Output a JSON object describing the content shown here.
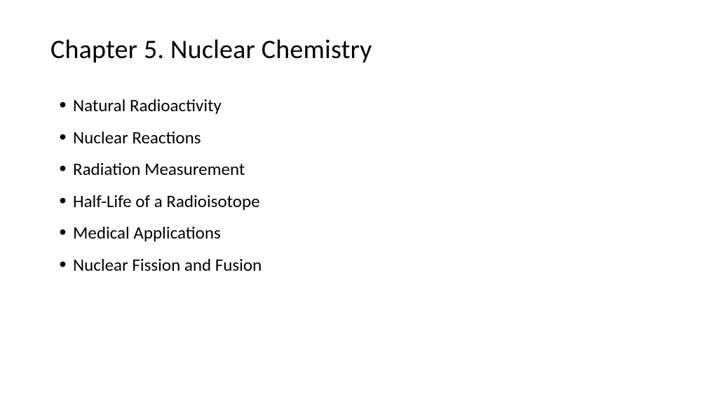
{
  "slide": {
    "title": "Chapter 5. Nuclear Chemistry",
    "bullets": [
      "Natural Radioactivity",
      "Nuclear Reactions",
      "Radiation Measurement",
      "Half-Life of a Radioisotope",
      "Medical Applications",
      "Nuclear Fission and Fusion"
    ],
    "background_color": "#ffffff",
    "title_color": "#000000",
    "text_color": "#000000",
    "title_fontsize": 38,
    "bullet_fontsize": 25
  }
}
